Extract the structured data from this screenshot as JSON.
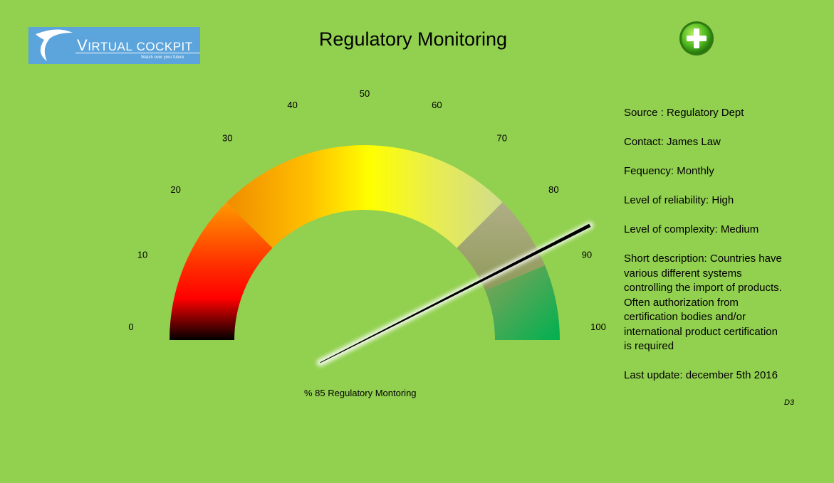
{
  "logo": {
    "brand_first": "V",
    "brand_rest": "IRTUAL",
    "brand_second": "COCKPIT",
    "tagline": "Watch over your future"
  },
  "header": {
    "title": "Regulatory Monitoring",
    "add_icon": "plus-circle-icon"
  },
  "gauge": {
    "value": 85,
    "min": 0,
    "max": 100,
    "ticks": [
      "0",
      "10",
      "20",
      "30",
      "40",
      "50",
      "60",
      "70",
      "80",
      "90",
      "100"
    ],
    "caption": "% 85 Regulatory Montoring",
    "colors": {
      "background": "#92d050",
      "red": "#ff0000",
      "black": "#000000",
      "orange": "#ff9900",
      "yellow": "#ffff00",
      "pale": "#d6e08a",
      "olive": "#a7a87a",
      "green": "#00b050",
      "needle": "#000000"
    }
  },
  "info": {
    "source": "Source : Regulatory Dept",
    "contact": "Contact: James Law",
    "frequency": "Fequency: Monthly",
    "reliability": "Level of reliability: High",
    "complexity": "Level of complexity: Medium",
    "description_lines": [
      "Short description:  Countries have",
      "various different systems",
      "controlling the import of products.",
      "Often authorization from",
      "certification bodies and/or",
      "international product certification",
      "is required"
    ],
    "last_update": "Last update:  december 5th 2016"
  },
  "footnote": "D3"
}
